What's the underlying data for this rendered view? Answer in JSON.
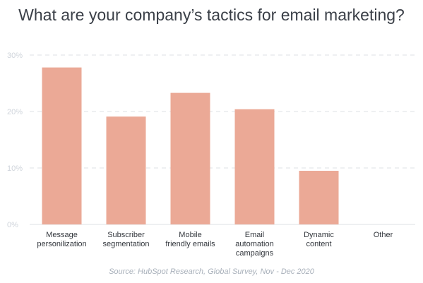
{
  "chart_data": {
    "type": "bar",
    "title": "What are your company’s tactics for email marketing?",
    "categories": [
      [
        "Message",
        "personilization"
      ],
      [
        "Subscriber",
        "segmentation"
      ],
      [
        "Mobile",
        "friendly emails"
      ],
      [
        "Email",
        "automation",
        "campaigns"
      ],
      [
        "Dynamic",
        "content"
      ],
      [
        "Other"
      ]
    ],
    "values": [
      27.8,
      19.1,
      23.3,
      20.4,
      9.5,
      0
    ],
    "ylim": [
      0,
      30
    ],
    "yticks": [
      "0%",
      "10%",
      "20%",
      "30%"
    ],
    "grid": true,
    "bar_color": "#eba996",
    "source": "Source: HubSpot Research, Global Survey, Nov - Dec 2020"
  }
}
